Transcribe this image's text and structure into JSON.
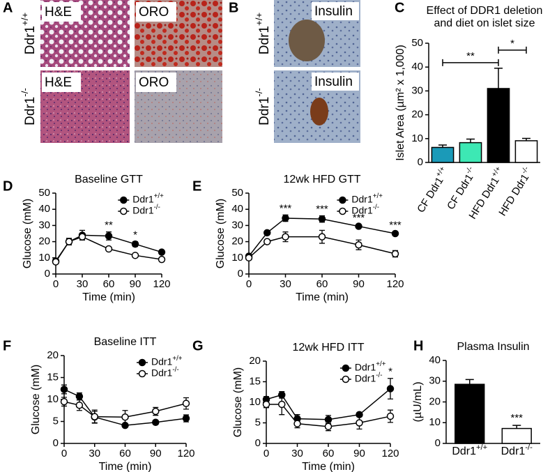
{
  "figure": {
    "panel_letters": [
      "A",
      "B",
      "C",
      "D",
      "E",
      "F",
      "G",
      "H"
    ],
    "genotypes": [
      "Ddr1+/+",
      "Ddr1-/-"
    ],
    "stains": [
      "H&E",
      "ORO",
      "Insulin"
    ]
  },
  "chart_data": [
    {
      "type": "bar",
      "title": "Effect of DDR1 deletion and diet on islet size",
      "y_label": "Islet Area (µm² x 1,000)",
      "categories": [
        "CF Ddr1+/+",
        "CF Ddr1-/-",
        "HFD Ddr1+/+",
        "HFD Ddr1-/-"
      ],
      "values": [
        6.3,
        8.3,
        31,
        9.1
      ],
      "errors": [
        1,
        1.5,
        8.5,
        1
      ],
      "colors": [
        "#1b9ab8",
        "#3de8b4",
        "#000000",
        "#ffffff"
      ],
      "ylim": [
        0,
        50
      ],
      "yticks": [
        0,
        10,
        20,
        30,
        40,
        50
      ],
      "annotations": [
        {
          "text": "**",
          "categories": [
            "CF Ddr1+/+",
            "HFD Ddr1+/+"
          ]
        },
        {
          "text": "*",
          "categories": [
            "HFD Ddr1+/+",
            "HFD Ddr1-/-"
          ]
        }
      ]
    },
    {
      "type": "line",
      "title": "Baseline GTT",
      "x_label": "Time (min)",
      "y_label": "Glucose (mM)",
      "x": [
        0,
        15,
        30,
        60,
        90,
        120
      ],
      "xlim": [
        0,
        120
      ],
      "xticks": [
        0,
        30,
        60,
        90,
        120
      ],
      "ylim": [
        0,
        50
      ],
      "yticks": [
        0,
        10,
        20,
        30,
        40,
        50
      ],
      "legend": "upper right",
      "series": [
        {
          "name": "Ddr1+/+",
          "color": "#000000",
          "marker_fill": "#000000",
          "values": [
            8,
            20,
            24,
            23.5,
            18.5,
            13.5
          ],
          "errors": [
            1,
            2,
            3,
            2.5,
            1.5,
            1
          ]
        },
        {
          "name": "Ddr1-/-",
          "color": "#000000",
          "marker_fill": "#ffffff",
          "values": [
            7.5,
            20,
            23,
            15.5,
            11.5,
            9
          ],
          "errors": [
            1,
            2,
            2,
            1,
            1,
            1
          ]
        }
      ],
      "annotations": [
        {
          "x": 60,
          "text": "**"
        },
        {
          "x": 90,
          "text": "*"
        }
      ]
    },
    {
      "type": "line",
      "title": "12wk HFD GTT",
      "x_label": "Time (min)",
      "y_label": "Glucose (mM)",
      "x": [
        0,
        15,
        30,
        60,
        90,
        120
      ],
      "xlim": [
        0,
        120
      ],
      "xticks": [
        0,
        30,
        60,
        90,
        120
      ],
      "ylim": [
        0,
        50
      ],
      "yticks": [
        0,
        10,
        20,
        30,
        40,
        50
      ],
      "legend": "upper right",
      "series": [
        {
          "name": "Ddr1+/+",
          "color": "#000000",
          "marker_fill": "#000000",
          "values": [
            11,
            25.5,
            34.5,
            34,
            29.5,
            25
          ],
          "errors": [
            1,
            1,
            2,
            2,
            1,
            1
          ]
        },
        {
          "name": "Ddr1-/-",
          "color": "#000000",
          "marker_fill": "#ffffff",
          "values": [
            10,
            20,
            23,
            23,
            18,
            12.5
          ],
          "errors": [
            1,
            1,
            3,
            4,
            3,
            2
          ]
        }
      ],
      "annotations": [
        {
          "x": 30,
          "text": "***"
        },
        {
          "x": 60,
          "text": "***"
        },
        {
          "x": 90,
          "text": "***"
        },
        {
          "x": 120,
          "text": "***"
        }
      ]
    },
    {
      "type": "line",
      "title": "Baseline ITT",
      "x_label": "Time (min)",
      "y_label": "Glucose (mM)",
      "x": [
        0,
        15,
        30,
        60,
        90,
        120
      ],
      "xlim": [
        0,
        120
      ],
      "xticks": [
        0,
        30,
        60,
        90,
        120
      ],
      "ylim": [
        0,
        20
      ],
      "yticks": [
        0,
        5,
        10,
        15,
        20
      ],
      "legend": "upper right",
      "series": [
        {
          "name": "Ddr1+/+",
          "color": "#000000",
          "marker_fill": "#000000",
          "values": [
            12.3,
            10.7,
            6,
            4.1,
            4.8,
            5.7
          ],
          "errors": [
            1,
            0.8,
            1.3,
            0.3,
            0.3,
            0.8
          ]
        },
        {
          "name": "Ddr1-/-",
          "color": "#000000",
          "marker_fill": "#ffffff",
          "values": [
            9.5,
            8.7,
            6.1,
            6,
            7.3,
            9.1
          ],
          "errors": [
            1,
            1.2,
            1.5,
            1.5,
            0.9,
            1.3
          ]
        }
      ],
      "annotations": []
    },
    {
      "type": "line",
      "title": "12wk HFD ITT",
      "x_label": "Time (min)",
      "y_label": "Glucose (mM)",
      "x": [
        0,
        15,
        30,
        60,
        90,
        120
      ],
      "xlim": [
        0,
        120
      ],
      "xticks": [
        0,
        30,
        60,
        90,
        120
      ],
      "ylim": [
        0,
        20
      ],
      "yticks": [
        0,
        5,
        10,
        15,
        20
      ],
      "legend": "upper right",
      "series": [
        {
          "name": "Ddr1+/+",
          "color": "#000000",
          "marker_fill": "#000000",
          "values": [
            10.7,
            11.8,
            6,
            5.8,
            7,
            13.3
          ],
          "errors": [
            0.7,
            0.8,
            1,
            1,
            0.5,
            2.5
          ]
        },
        {
          "name": "Ddr1-/-",
          "color": "#000000",
          "marker_fill": "#ffffff",
          "values": [
            9.5,
            9.5,
            4.8,
            4.1,
            5,
            6.6
          ],
          "errors": [
            0.8,
            2.5,
            1,
            1,
            1.5,
            1.5
          ]
        }
      ],
      "annotations": [
        {
          "x": 120,
          "text": "*"
        }
      ]
    },
    {
      "type": "bar",
      "title": "Plasma Insulin",
      "y_label": "(µU/mL)",
      "categories": [
        "Ddr1+/+",
        "Ddr1-/-"
      ],
      "values": [
        28.5,
        7.2
      ],
      "errors": [
        2.3,
        1.5
      ],
      "colors": [
        "#000000",
        "#ffffff"
      ],
      "ylim": [
        0,
        40
      ],
      "yticks": [
        0,
        10,
        20,
        30,
        40
      ],
      "annotations": [
        {
          "category": "Ddr1-/-",
          "text": "***"
        }
      ]
    }
  ]
}
